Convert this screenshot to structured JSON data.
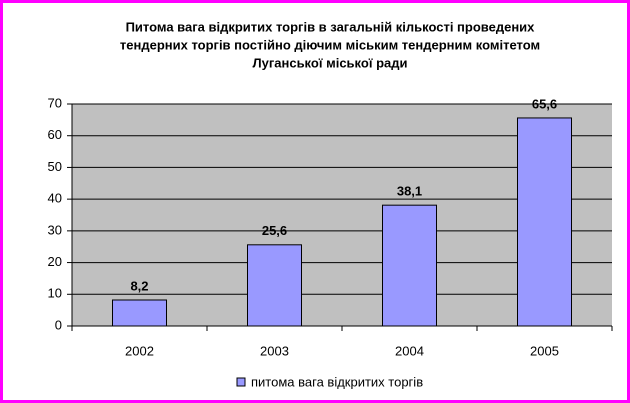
{
  "chart_data": {
    "type": "bar",
    "title": [
      "Питома вага відкритих торгів в загальній кількості проведених",
      "тендерних торгів постійно діючим міським тендерним комітетом",
      "Луганської міської ради"
    ],
    "categories": [
      "2002",
      "2003",
      "2004",
      "2005"
    ],
    "series": [
      {
        "name": "питома вага відкритих торгів",
        "color": "#9999ff",
        "values": [
          8.2,
          25.6,
          38.1,
          65.6
        ],
        "value_labels": [
          "8,2",
          "25,6",
          "38,1",
          "65,6"
        ]
      }
    ],
    "ylim": [
      0,
      70
    ],
    "yticks": [
      0,
      10,
      20,
      30,
      40,
      50,
      60,
      70
    ],
    "grid": true
  }
}
